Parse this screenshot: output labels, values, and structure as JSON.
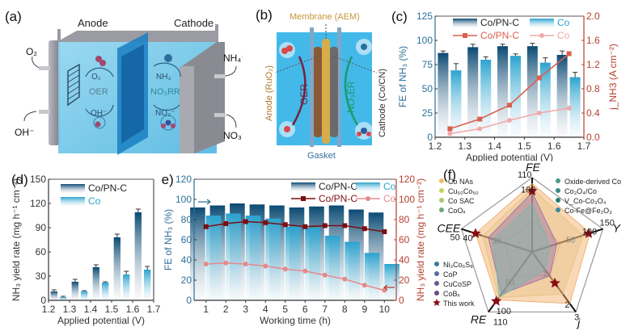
{
  "panels": {
    "a": {
      "label": "(a)",
      "anode_title": "Anode",
      "cathode_title": "Cathode",
      "outlet_left_top": "O₂",
      "inlet_left_bottom": "OH⁻",
      "outlet_right_top": "NH₄⁺",
      "inlet_right_bottom": "NO₃⁻",
      "anode_species_top": "O₂",
      "anode_reaction": "OER",
      "anode_species_bottom": "OH⁻",
      "cathode_species_top": "NH₃",
      "cathode_reaction": "NO₃RR",
      "cathode_species_bottom": "NO₃⁻"
    },
    "b": {
      "label": "(b)",
      "membrane": "Membrane (AEM)",
      "anode": "Anode (RuO₂)",
      "cathode": "Cathode (Co/CN)",
      "gasket": "Gasket",
      "left_reaction": "OER",
      "right_reaction": "NO₃ER"
    }
  },
  "colors": {
    "copnc_bar": "#0b4a73",
    "co_bar": "#2ba3cf",
    "copnc_line_c": "#d9604f",
    "co_line_c": "#f2a8a8",
    "copnc_line_e": "#7a0f14",
    "co_line_e": "#e58a8c",
    "left_axis": "#2d6f99",
    "right_axis": "#b5402f",
    "star": "#8b0c12"
  },
  "chart_data": [
    {
      "id": "c",
      "panel_label": "(c)",
      "type": "bar",
      "xlabel": "Applied potential (V)",
      "ylabel": "FE of NH₃ (%)",
      "y2label": "j_NH3 (A cm⁻²)",
      "xlim": [
        1.2,
        1.7
      ],
      "ylim": [
        0,
        125
      ],
      "y2lim": [
        0,
        2.0
      ],
      "xticks": [
        "1.2",
        "1.3",
        "1.4",
        "1.5",
        "1.6",
        "1.7"
      ],
      "yticks": [
        "0",
        "25",
        "50",
        "75",
        "100",
        "125"
      ],
      "y2ticks": [
        "0.0",
        "0.4",
        "0.8",
        "1.2",
        "1.6",
        "2.0"
      ],
      "categories": [
        1.25,
        1.35,
        1.45,
        1.55,
        1.65
      ],
      "series": [
        {
          "name": "Co/PN-C",
          "kind": "bar",
          "axis": "left",
          "values": [
            87,
            93,
            94,
            94,
            85
          ],
          "errors": [
            2,
            3,
            2,
            3,
            4
          ]
        },
        {
          "name": "Co",
          "kind": "bar",
          "axis": "left",
          "values": [
            69,
            80,
            84,
            77,
            62
          ],
          "errors": [
            7,
            3,
            2,
            5,
            5
          ]
        },
        {
          "name": "Co/PN-C",
          "kind": "line",
          "axis": "right",
          "values": [
            0.14,
            0.3,
            0.53,
            0.98,
            1.38
          ]
        },
        {
          "name": "Co",
          "kind": "line",
          "axis": "right",
          "values": [
            0.06,
            0.14,
            0.28,
            0.4,
            0.48
          ]
        }
      ],
      "legend": [
        "Co/PN-C",
        "Co",
        "Co/PN-C",
        "Co"
      ],
      "legend_position": "top"
    },
    {
      "id": "d",
      "panel_label": "(d)",
      "type": "bar",
      "xlabel": "Applied potential (V)",
      "ylabel": "NH₃ yield rate (mg h⁻¹ cm⁻²)",
      "xlim": [
        1.2,
        1.7
      ],
      "ylim": [
        0,
        150
      ],
      "xticks": [
        "1.2",
        "1.3",
        "1.4",
        "1.5",
        "1.6",
        "1.7"
      ],
      "yticks": [
        "0",
        "30",
        "60",
        "90",
        "120",
        "150"
      ],
      "categories": [
        1.25,
        1.35,
        1.45,
        1.55,
        1.65
      ],
      "series": [
        {
          "name": "Co/PN-C",
          "values": [
            11,
            23,
            41,
            78,
            109
          ],
          "errors": [
            2,
            3,
            3,
            4,
            4
          ]
        },
        {
          "name": "Co",
          "values": [
            4,
            11,
            22,
            32,
            38
          ],
          "errors": [
            1,
            1,
            1,
            4,
            4
          ]
        }
      ],
      "legend": [
        "Co/PN-C",
        "Co"
      ],
      "legend_position": "top-left"
    },
    {
      "id": "e",
      "panel_label": "(e)",
      "type": "bar",
      "xlabel": "Working time (h)",
      "ylabel": "FE of NH₃ (%)",
      "y2label": "NH₃ yield rate (mg h⁻¹ cm⁻²)",
      "ylim": [
        0,
        120
      ],
      "y2lim": [
        0,
        120
      ],
      "xticks": [
        "1",
        "2",
        "3",
        "4",
        "5",
        "6",
        "7",
        "8",
        "9",
        "10"
      ],
      "yticks": [
        "0",
        "20",
        "40",
        "60",
        "80",
        "100",
        "120"
      ],
      "y2ticks": [
        "0",
        "20",
        "40",
        "60",
        "80",
        "100",
        "120"
      ],
      "categories": [
        1,
        2,
        3,
        4,
        5,
        6,
        7,
        8,
        9,
        10
      ],
      "series": [
        {
          "name": "Co/PN-C",
          "kind": "bar",
          "axis": "left",
          "values": [
            92,
            94,
            96,
            95,
            94,
            92,
            93,
            94,
            90,
            87
          ]
        },
        {
          "name": "Co",
          "kind": "bar",
          "axis": "left",
          "values": [
            84,
            86,
            84,
            81,
            73,
            72,
            64,
            58,
            47,
            36
          ]
        },
        {
          "name": "Co/PN-C",
          "kind": "line",
          "axis": "right",
          "values": [
            73,
            76,
            78,
            77,
            75,
            73,
            74,
            74,
            71,
            68
          ]
        },
        {
          "name": "Co",
          "kind": "line",
          "axis": "right",
          "values": [
            36,
            37,
            36,
            34,
            31,
            29,
            25,
            21,
            15,
            10
          ]
        }
      ],
      "legend": [
        "Co/PN-C",
        "Co",
        "Co/PN-C",
        "Co"
      ],
      "legend_position": "top-right"
    },
    {
      "id": "f",
      "panel_label": "(f)",
      "type": "radar",
      "axes": [
        "FE",
        "Y",
        "j",
        "RE",
        "CEE"
      ],
      "axis_outer_labels": [
        "110",
        "150",
        "3",
        "110",
        "50"
      ],
      "axis_inner_labels": [
        "100",
        "100",
        "2",
        "100",
        "40"
      ],
      "inner_ring_labels": [
        "50",
        "1",
        "90",
        "30"
      ],
      "legend_top_left": [
        "Co NAs",
        "Cu₅₀Co₅₀",
        "Co SAC",
        "CoOₓ"
      ],
      "legend_top_right": [
        "Oxide-derived Co",
        "Co₃O₄/Co",
        "V_Co-Co₃O₄",
        "Co-Fe@Fe₂O₃"
      ],
      "legend_bottom_left": [
        "Ni₃Co₆S₈",
        "CoP",
        "CuCoSP",
        "CoBₓ",
        "This work"
      ],
      "series": [
        {
          "name": "This work",
          "values": {
            "FE": 100,
            "Y": 109,
            "j": 1.38,
            "RE": 100,
            "CEE": 43
          }
        }
      ]
    }
  ]
}
